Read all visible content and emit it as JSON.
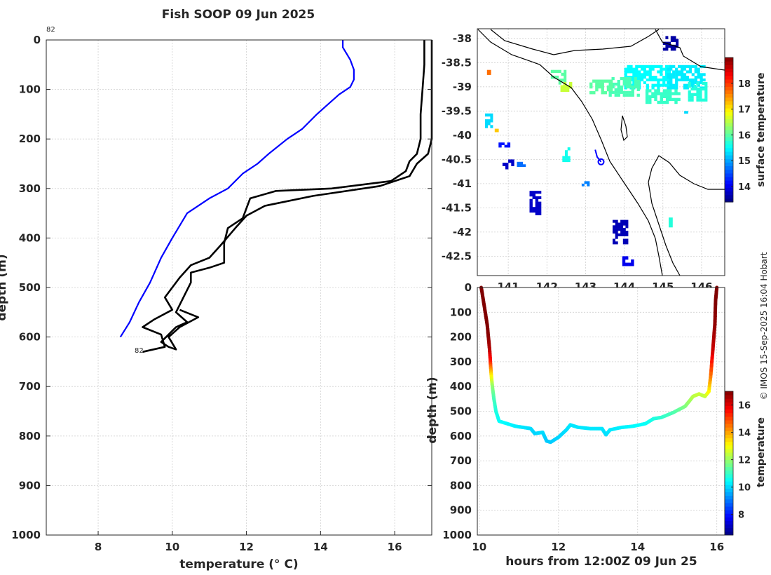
{
  "title": "Fish SOOP 09 Jun 2025",
  "copyright": "© IMOS 15-Sep-2025 16:04 Hobart",
  "colors": {
    "profile_blue": "#0000ff",
    "profile_black": "#000000",
    "land": "#ffffff",
    "coast": "#000000"
  },
  "chart_data": [
    {
      "id": "profile",
      "type": "line",
      "xlabel": "temperature (° C)",
      "ylabel": "depth (m)",
      "xlim": [
        6.6,
        17
      ],
      "ylim": [
        0,
        1000
      ],
      "y_reversed": true,
      "xticks": [
        8,
        10,
        12,
        14,
        16
      ],
      "yticks": [
        0,
        100,
        200,
        300,
        400,
        500,
        600,
        700,
        800,
        900,
        1000
      ],
      "annotation_top": "82",
      "annotation_bottom": "82",
      "series": [
        {
          "name": "climatology",
          "color": "#0000ff",
          "points": [
            [
              14.6,
              0
            ],
            [
              14.6,
              15
            ],
            [
              14.8,
              40
            ],
            [
              14.9,
              60
            ],
            [
              14.9,
              80
            ],
            [
              14.8,
              95
            ],
            [
              14.5,
              110
            ],
            [
              14.2,
              130
            ],
            [
              13.9,
              150
            ],
            [
              13.5,
              180
            ],
            [
              13.1,
              200
            ],
            [
              12.6,
              230
            ],
            [
              12.3,
              250
            ],
            [
              11.9,
              270
            ],
            [
              11.5,
              300
            ],
            [
              11.0,
              320
            ],
            [
              10.4,
              350
            ],
            [
              10.0,
              400
            ],
            [
              9.7,
              440
            ],
            [
              9.4,
              490
            ],
            [
              9.1,
              530
            ],
            [
              8.85,
              570
            ],
            [
              8.6,
              600
            ]
          ]
        },
        {
          "name": "profile_down",
          "color": "#000000",
          "points": [
            [
              16.8,
              0
            ],
            [
              16.8,
              50
            ],
            [
              16.75,
              100
            ],
            [
              16.7,
              150
            ],
            [
              16.7,
              200
            ],
            [
              16.6,
              230
            ],
            [
              16.4,
              245
            ],
            [
              16.3,
              265
            ],
            [
              15.9,
              285
            ],
            [
              14.3,
              300
            ],
            [
              12.8,
              305
            ],
            [
              12.1,
              320
            ],
            [
              11.9,
              360
            ],
            [
              11.5,
              380
            ],
            [
              11.4,
              410
            ],
            [
              11.4,
              450
            ],
            [
              11.0,
              460
            ],
            [
              10.5,
              470
            ],
            [
              10.5,
              490
            ],
            [
              10.3,
              520
            ],
            [
              10.1,
              550
            ],
            [
              10.4,
              570
            ],
            [
              10.1,
              580
            ],
            [
              9.9,
              595
            ],
            [
              9.7,
              610
            ],
            [
              9.9,
              620
            ],
            [
              10.1,
              625
            ],
            [
              9.9,
              600
            ],
            [
              10.2,
              580
            ],
            [
              10.7,
              560
            ],
            [
              10.2,
              545
            ]
          ]
        },
        {
          "name": "profile_up",
          "color": "#000000",
          "points": [
            [
              17.0,
              0
            ],
            [
              17.0,
              50
            ],
            [
              17.0,
              100
            ],
            [
              17.0,
              150
            ],
            [
              17.0,
              200
            ],
            [
              16.9,
              230
            ],
            [
              16.6,
              250
            ],
            [
              16.4,
              275
            ],
            [
              15.6,
              295
            ],
            [
              13.8,
              315
            ],
            [
              12.5,
              335
            ],
            [
              12.0,
              355
            ],
            [
              11.7,
              380
            ],
            [
              11.3,
              415
            ],
            [
              11.0,
              440
            ],
            [
              10.5,
              455
            ],
            [
              10.2,
              480
            ],
            [
              9.8,
              520
            ],
            [
              10.0,
              545
            ],
            [
              9.5,
              565
            ],
            [
              9.2,
              580
            ],
            [
              9.7,
              595
            ],
            [
              9.8,
              620
            ],
            [
              9.2,
              630
            ]
          ]
        }
      ]
    },
    {
      "id": "map",
      "type": "heatmap",
      "xlim": [
        140.2,
        146.6
      ],
      "ylim": [
        -42.9,
        -37.8
      ],
      "xticks": [
        141,
        142,
        143,
        144,
        145,
        146
      ],
      "yticks": [
        -38,
        -38.5,
        -39,
        -39.5,
        -40,
        -40.5,
        -41,
        -41.5,
        -42,
        -42.5
      ],
      "colorbar_label": "surface temperature",
      "colorbar_range": [
        13.4,
        19
      ],
      "colorbar_ticks": [
        14,
        15,
        16,
        17,
        18
      ],
      "track_color": "#0000ff",
      "track": [
        [
          143.25,
          -40.3
        ],
        [
          143.3,
          -40.45
        ],
        [
          143.4,
          -40.55
        ]
      ],
      "cells": [
        {
          "lon": 144.6,
          "lat": -38.8,
          "w": 1.2,
          "h": 0.5,
          "val": 15.5
        },
        {
          "lon": 145.6,
          "lat": -38.8,
          "w": 1.0,
          "h": 0.5,
          "val": 15.4
        },
        {
          "lon": 144.0,
          "lat": -39.0,
          "w": 0.8,
          "h": 0.4,
          "val": 15.9
        },
        {
          "lon": 143.4,
          "lat": -39.0,
          "w": 0.6,
          "h": 0.3,
          "val": 16.0
        },
        {
          "lon": 145.0,
          "lat": -39.2,
          "w": 0.9,
          "h": 0.3,
          "val": 15.8
        },
        {
          "lon": 145.9,
          "lat": -39.1,
          "w": 0.5,
          "h": 0.4,
          "val": 15.7
        },
        {
          "lon": 142.3,
          "lat": -38.8,
          "w": 0.4,
          "h": 0.3,
          "val": 16.0
        },
        {
          "lon": 142.5,
          "lat": -39.0,
          "w": 0.3,
          "h": 0.2,
          "val": 16.6
        },
        {
          "lon": 145.2,
          "lat": -38.1,
          "w": 0.4,
          "h": 0.3,
          "val": 13.6
        },
        {
          "lon": 140.5,
          "lat": -38.7,
          "w": 0.1,
          "h": 0.1,
          "val": 17.7
        },
        {
          "lon": 140.5,
          "lat": -39.7,
          "w": 0.2,
          "h": 0.3,
          "val": 15.3
        },
        {
          "lon": 140.7,
          "lat": -39.9,
          "w": 0.1,
          "h": 0.2,
          "val": 17.2
        },
        {
          "lon": 141.0,
          "lat": -40.6,
          "w": 0.3,
          "h": 0.2,
          "val": 13.8
        },
        {
          "lon": 141.3,
          "lat": -40.6,
          "w": 0.3,
          "h": 0.1,
          "val": 14.7
        },
        {
          "lon": 140.9,
          "lat": -40.2,
          "w": 0.3,
          "h": 0.1,
          "val": 14.2
        },
        {
          "lon": 141.7,
          "lat": -41.4,
          "w": 0.3,
          "h": 0.5,
          "val": 13.8
        },
        {
          "lon": 142.5,
          "lat": -40.4,
          "w": 0.2,
          "h": 0.3,
          "val": 15.6
        },
        {
          "lon": 143.9,
          "lat": -42.0,
          "w": 0.4,
          "h": 0.5,
          "val": 13.7
        },
        {
          "lon": 144.1,
          "lat": -42.6,
          "w": 0.3,
          "h": 0.2,
          "val": 14.0
        },
        {
          "lon": 143.0,
          "lat": -41.0,
          "w": 0.2,
          "h": 0.1,
          "val": 14.8
        },
        {
          "lon": 145.2,
          "lat": -41.8,
          "w": 0.1,
          "h": 0.2,
          "val": 15.7
        },
        {
          "lon": 145.6,
          "lat": -39.5,
          "w": 0.1,
          "h": 0.1,
          "val": 15.3
        }
      ]
    },
    {
      "id": "section",
      "type": "line",
      "xlabel": "hours from 12:00Z 09 Jun 25",
      "ylabel": "depth (m)",
      "xlim": [
        9.95,
        16.2
      ],
      "ylim": [
        0,
        1000
      ],
      "y_reversed": true,
      "xticks": [
        10,
        12,
        14,
        16
      ],
      "yticks": [
        0,
        100,
        200,
        300,
        400,
        500,
        600,
        700,
        800,
        900,
        1000
      ],
      "colorbar_label": "temperature",
      "colorbar_range": [
        6.5,
        17
      ],
      "colorbar_ticks": [
        8,
        10,
        12,
        14,
        16
      ],
      "points": [
        [
          10.05,
          0,
          17
        ],
        [
          10.1,
          50,
          17
        ],
        [
          10.15,
          100,
          17
        ],
        [
          10.2,
          150,
          17
        ],
        [
          10.23,
          200,
          16.9
        ],
        [
          10.26,
          250,
          16.5
        ],
        [
          10.28,
          300,
          15.5
        ],
        [
          10.3,
          350,
          13.5
        ],
        [
          10.33,
          400,
          12.0
        ],
        [
          10.37,
          450,
          11.2
        ],
        [
          10.42,
          500,
          10.8
        ],
        [
          10.5,
          540,
          10.5
        ],
        [
          10.7,
          550,
          10.4
        ],
        [
          10.9,
          560,
          10.3
        ],
        [
          11.1,
          565,
          10.2
        ],
        [
          11.3,
          570,
          10.1
        ],
        [
          11.4,
          590,
          10.0
        ],
        [
          11.6,
          585,
          10.1
        ],
        [
          11.7,
          620,
          9.9
        ],
        [
          11.8,
          625,
          9.9
        ],
        [
          12.0,
          605,
          10.0
        ],
        [
          12.2,
          575,
          10.1
        ],
        [
          12.3,
          555,
          10.2
        ],
        [
          12.5,
          565,
          10.2
        ],
        [
          12.8,
          570,
          10.2
        ],
        [
          13.1,
          570,
          10.2
        ],
        [
          13.2,
          595,
          10.1
        ],
        [
          13.3,
          575,
          10.2
        ],
        [
          13.6,
          565,
          10.3
        ],
        [
          13.9,
          560,
          10.4
        ],
        [
          14.2,
          550,
          10.5
        ],
        [
          14.4,
          530,
          10.7
        ],
        [
          14.6,
          525,
          10.9
        ],
        [
          14.9,
          505,
          11.2
        ],
        [
          15.2,
          480,
          11.7
        ],
        [
          15.4,
          440,
          12.3
        ],
        [
          15.55,
          430,
          12.5
        ],
        [
          15.7,
          440,
          12.4
        ],
        [
          15.8,
          420,
          13.0
        ],
        [
          15.85,
          350,
          14.5
        ],
        [
          15.9,
          250,
          16.2
        ],
        [
          15.95,
          150,
          16.8
        ],
        [
          15.97,
          50,
          17
        ],
        [
          16.0,
          0,
          17
        ]
      ]
    }
  ]
}
